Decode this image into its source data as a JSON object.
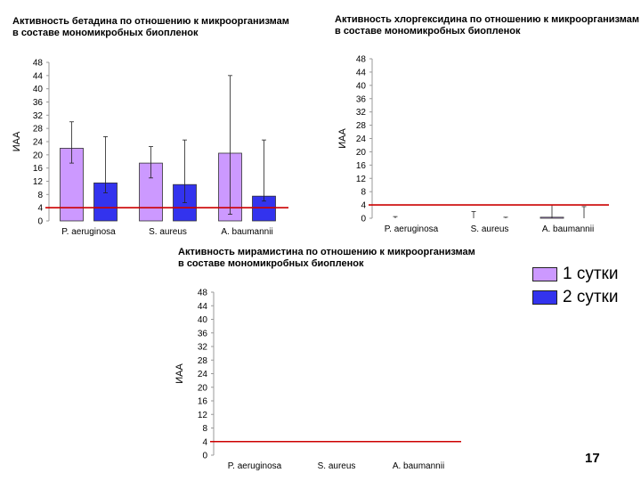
{
  "legend": {
    "items": [
      {
        "label": "1 сутки",
        "color": "#cc99ff"
      },
      {
        "label": "2 сутки",
        "color": "#3333ee"
      }
    ]
  },
  "page_number": "17",
  "colors": {
    "threshold": "#cc0000",
    "error": "#222222"
  },
  "chart_data": [
    {
      "type": "bar",
      "title": "Активность бетадина по отношению к микроорганизмам\nв составе мономикробных биопленок",
      "ylabel": "ИАА",
      "categories": [
        "P. aeruginosa",
        "S. aureus",
        "A. baumannii"
      ],
      "ylim": [
        0,
        48
      ],
      "yticks": [
        0,
        4,
        8,
        12,
        16,
        20,
        24,
        28,
        32,
        36,
        40,
        44,
        48
      ],
      "threshold": 4,
      "series": [
        {
          "name": "1 сутки",
          "values": [
            22,
            17.5,
            20.5
          ],
          "err_low": [
            4.5,
            4.5,
            18.5
          ],
          "err_high": [
            8,
            5,
            23.5
          ]
        },
        {
          "name": "2 сутки",
          "values": [
            11.5,
            11,
            7.5
          ],
          "err_low": [
            3,
            5.5,
            1.5
          ],
          "err_high": [
            14,
            13.5,
            17
          ]
        }
      ]
    },
    {
      "type": "bar",
      "title": "Активность хлоргексидина по отношению к микроорганизмам\nв составе мономикробных биопленок",
      "ylabel": "ИАА",
      "categories": [
        "P. aeruginosa",
        "S. aureus",
        "A. baumannii"
      ],
      "ylim": [
        0,
        48
      ],
      "yticks": [
        0,
        4,
        8,
        12,
        16,
        20,
        24,
        28,
        32,
        36,
        40,
        44,
        48
      ],
      "threshold": 4,
      "series": [
        {
          "name": "1 сутки",
          "values": [
            0,
            0,
            0.3
          ],
          "err_low": [
            0,
            0,
            0.3
          ],
          "err_high": [
            0.5,
            2,
            3.7
          ]
        },
        {
          "name": "2 сутки",
          "values": [
            0,
            0,
            0
          ],
          "err_low": [
            0,
            0,
            0
          ],
          "err_high": [
            0,
            0.3,
            3.5
          ]
        }
      ]
    },
    {
      "type": "bar",
      "title": "Активность мирамистина по отношению к микроорганизмам\nв составе мономикробных биопленок",
      "ylabel": "ИАА",
      "categories": [
        "P. aeruginosa",
        "S. aureus",
        "A. baumannii"
      ],
      "ylim": [
        0,
        48
      ],
      "yticks": [
        0,
        4,
        8,
        12,
        16,
        20,
        24,
        28,
        32,
        36,
        40,
        44,
        48
      ],
      "threshold": 4,
      "series": [
        {
          "name": "1 сутки",
          "values": [
            0,
            0,
            0
          ],
          "err_low": [
            0,
            0,
            0
          ],
          "err_high": [
            0,
            0,
            0
          ]
        },
        {
          "name": "2 сутки",
          "values": [
            0,
            0,
            0
          ],
          "err_low": [
            0,
            0,
            0
          ],
          "err_high": [
            0,
            0,
            0
          ]
        }
      ]
    }
  ]
}
